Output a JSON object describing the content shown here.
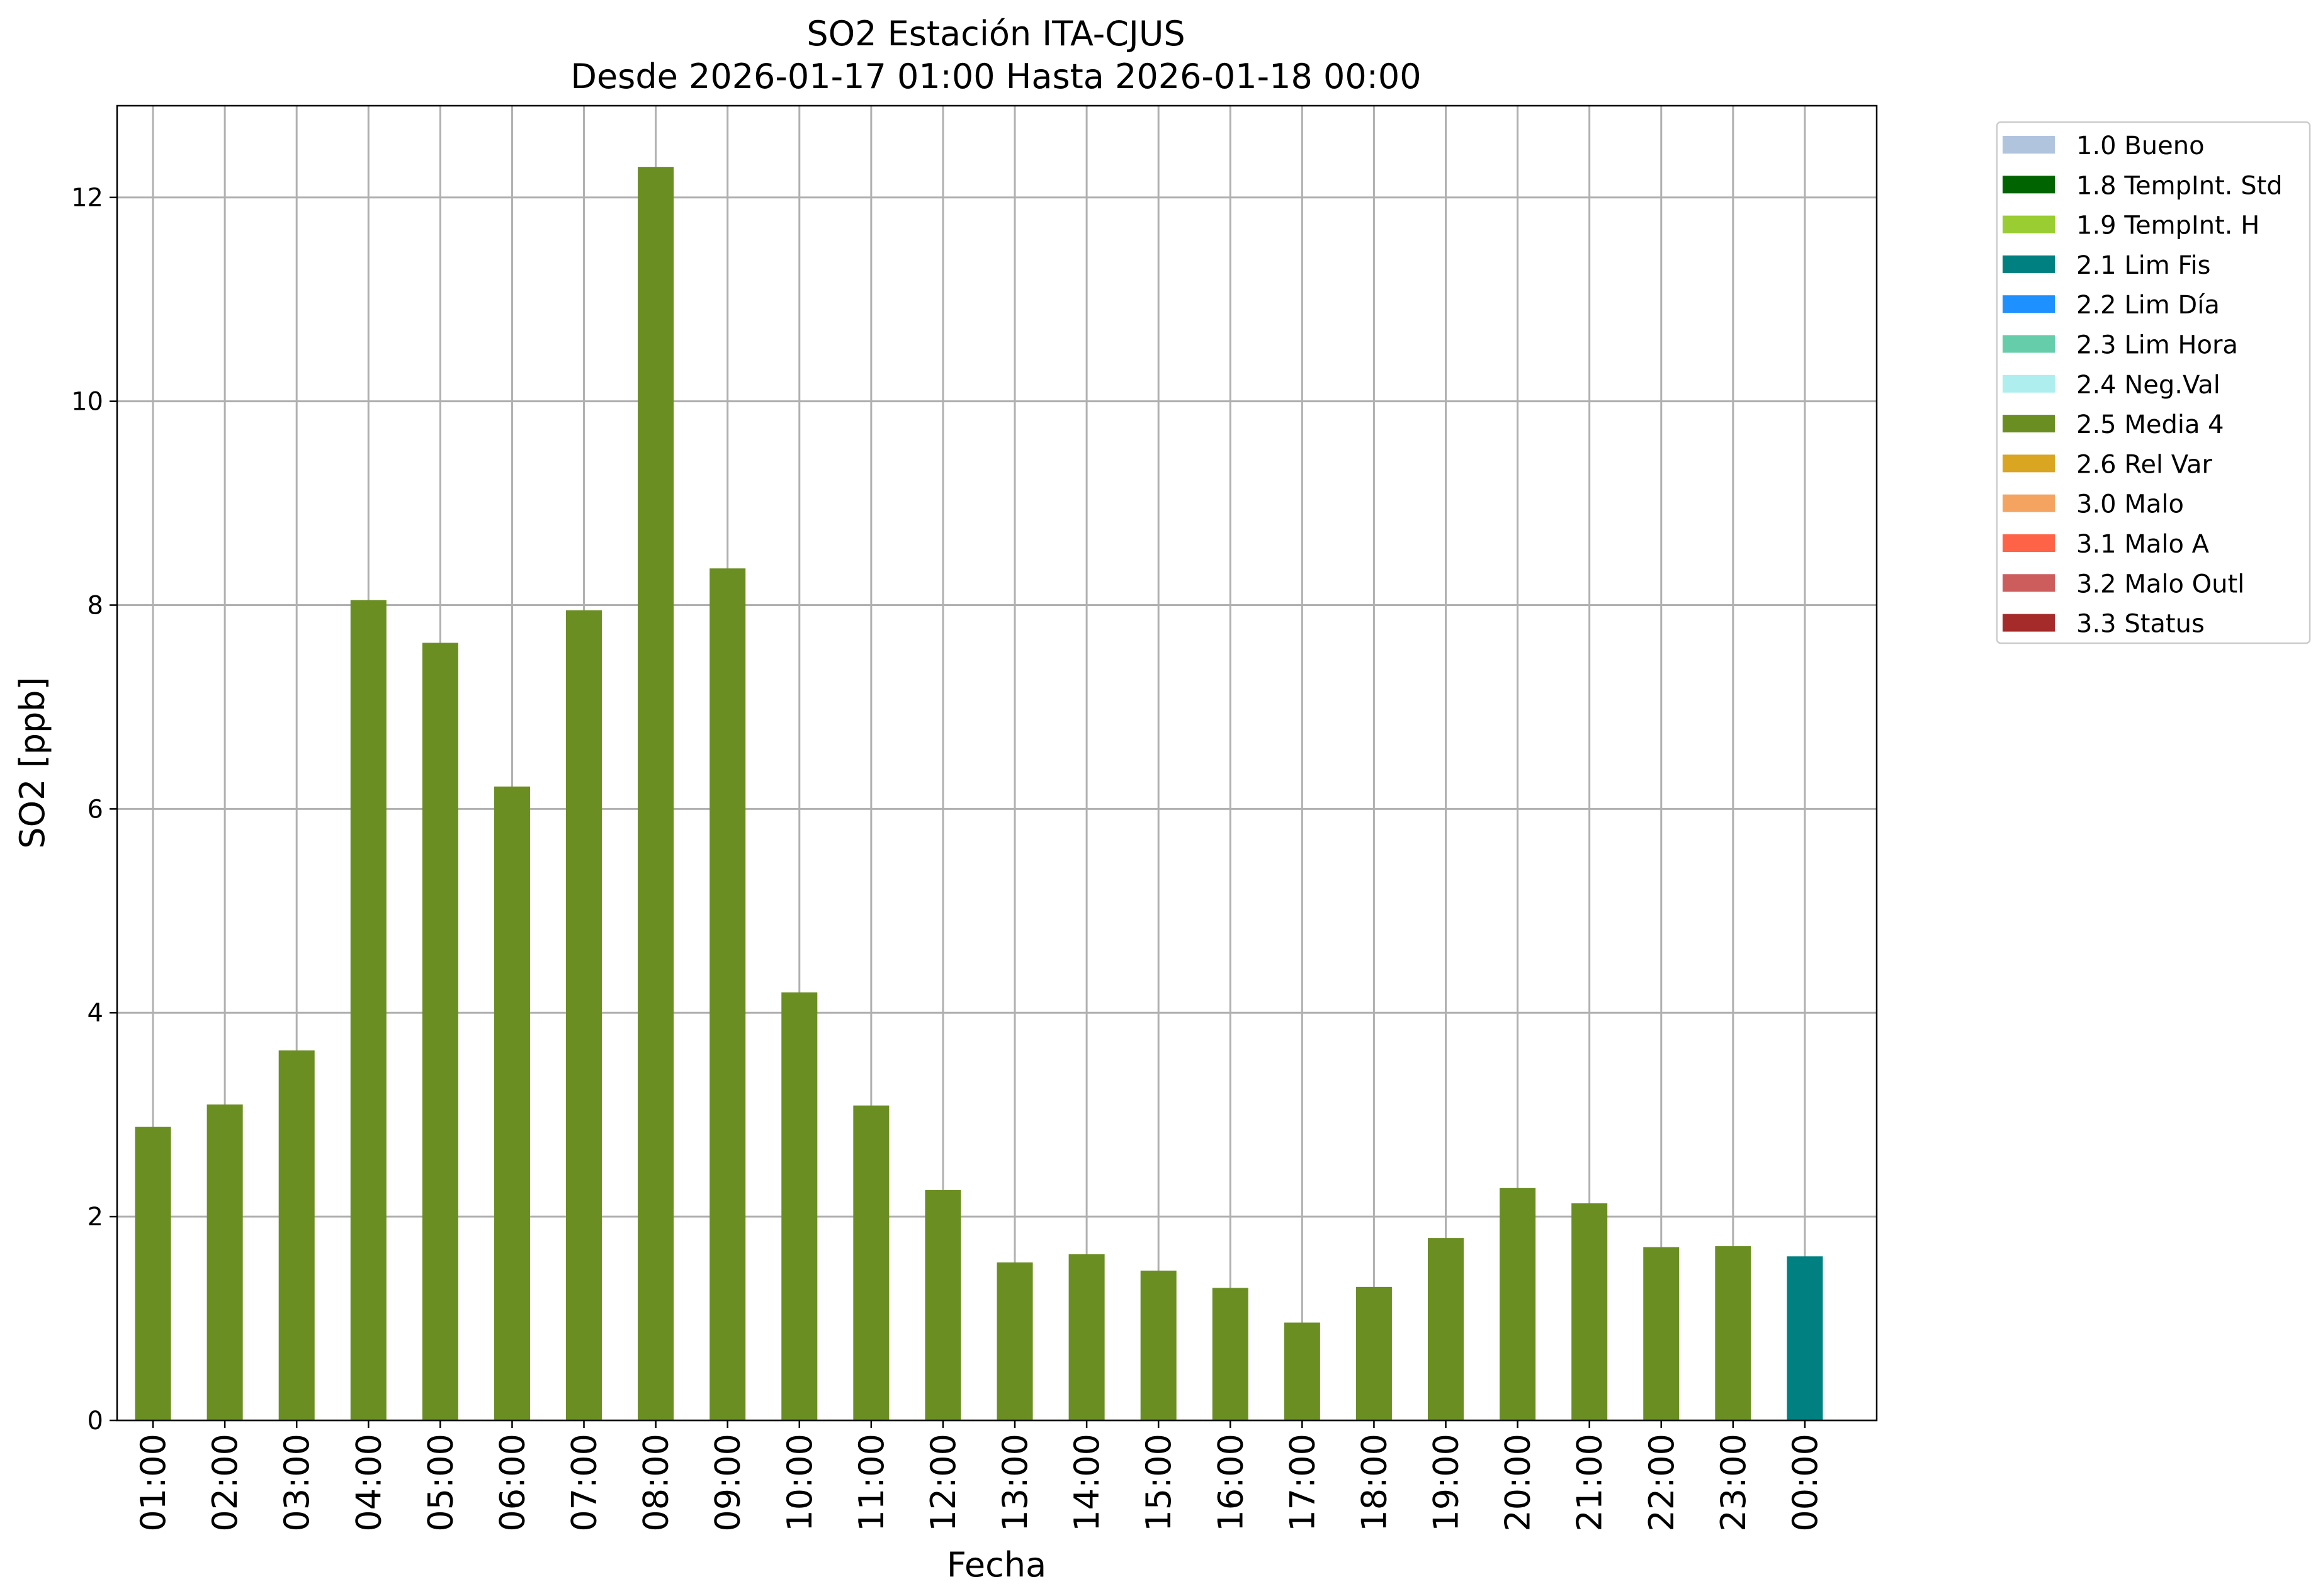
{
  "chart_data": {
    "type": "bar",
    "title": "SO2 Estación ITA-CJUS",
    "subtitle": "Desde 2026-01-17 01:00 Hasta 2026-01-18 00:00",
    "xlabel": "Fecha",
    "ylabel": "SO2 [ppb]",
    "ylim": [
      0,
      12.9
    ],
    "yticks": [
      0,
      2,
      4,
      6,
      8,
      10,
      12
    ],
    "grid": true,
    "legend_position": "outside-top-right",
    "categories": [
      "01:00",
      "02:00",
      "03:00",
      "04:00",
      "05:00",
      "06:00",
      "07:00",
      "08:00",
      "09:00",
      "10:00",
      "11:00",
      "12:00",
      "13:00",
      "14:00",
      "15:00",
      "16:00",
      "17:00",
      "18:00",
      "19:00",
      "20:00",
      "21:00",
      "22:00",
      "23:00",
      "00:00"
    ],
    "values": [
      2.88,
      3.1,
      3.63,
      8.05,
      7.63,
      6.22,
      7.95,
      12.3,
      8.36,
      4.2,
      3.09,
      2.26,
      1.55,
      1.63,
      1.47,
      1.3,
      0.96,
      1.31,
      1.79,
      2.28,
      2.13,
      1.7,
      1.71,
      1.61
    ],
    "flags": [
      "2.5 Media 4",
      "2.5 Media 4",
      "2.5 Media 4",
      "2.5 Media 4",
      "2.5 Media 4",
      "2.5 Media 4",
      "2.5 Media 4",
      "2.5 Media 4",
      "2.5 Media 4",
      "2.5 Media 4",
      "2.5 Media 4",
      "2.5 Media 4",
      "2.5 Media 4",
      "2.5 Media 4",
      "2.5 Media 4",
      "2.5 Media 4",
      "2.5 Media 4",
      "2.5 Media 4",
      "2.5 Media 4",
      "2.5 Media 4",
      "2.5 Media 4",
      "2.5 Media 4",
      "2.5 Media 4",
      "2.1 Lim Fis"
    ],
    "legend": [
      {
        "label": "1.0 Bueno",
        "color": "#b0c4de"
      },
      {
        "label": "1.8 TempInt. Std",
        "color": "#006400"
      },
      {
        "label": "1.9 TempInt. H",
        "color": "#9acd32"
      },
      {
        "label": "2.1 Lim Fis",
        "color": "#008080"
      },
      {
        "label": "2.2 Lim Día",
        "color": "#1e90ff"
      },
      {
        "label": "2.3 Lim Hora",
        "color": "#66cdaa"
      },
      {
        "label": "2.4 Neg.Val",
        "color": "#afeeee"
      },
      {
        "label": "2.5 Media 4",
        "color": "#6b8e23"
      },
      {
        "label": "2.6 Rel Var",
        "color": "#daa520"
      },
      {
        "label": "3.0 Malo",
        "color": "#f4a460"
      },
      {
        "label": "3.1 Malo A",
        "color": "#ff6347"
      },
      {
        "label": "3.2 Malo Outl",
        "color": "#cd5c5c"
      },
      {
        "label": "3.3 Status",
        "color": "#a52a2a"
      }
    ]
  }
}
